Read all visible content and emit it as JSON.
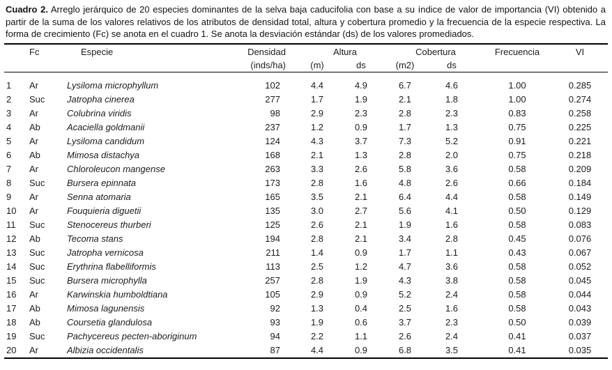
{
  "caption": {
    "label": "Cuadro 2.",
    "text": " Arreglo jerárquico de 20 especies dominantes de la selva baja caducifolia con base a su índice de valor de importancia (VI) obtenido a partir de la suma de los valores relativos de los atributos de densidad total, altura y cobertura promedio y la frecuencia de la especie respectiva. La forma de crecimiento (Fc) se anota en el cuadro 1. Se anota la desviación estándar (ds) de los valores promediados."
  },
  "table": {
    "headers": {
      "fc": "Fc",
      "species": "Especie",
      "density_line1": "Densidad",
      "density_line2": "(inds/ha)",
      "height": "Altura",
      "height_unit": "(m)",
      "height_ds": "ds",
      "cover": "Cobertura",
      "cover_unit": "(m2)",
      "cover_ds": "ds",
      "frequency": "Frecuencia",
      "vi": "VI"
    },
    "rows": [
      {
        "rank": "1",
        "fc": "Ar",
        "species": "Lysiloma microphyllum",
        "density": "102",
        "height_m": "4.4",
        "height_ds": "4.9",
        "cover_m2": "6.7",
        "cover_ds": "4.6",
        "frequency": "1.00",
        "vi": "0.285"
      },
      {
        "rank": "2",
        "fc": "Suc",
        "species": "Jatropha cinerea",
        "density": "277",
        "height_m": "1.7",
        "height_ds": "1.9",
        "cover_m2": "2.1",
        "cover_ds": "1.8",
        "frequency": "1.00",
        "vi": "0.274"
      },
      {
        "rank": "3",
        "fc": "Ar",
        "species": "Colubrina viridis",
        "density": "98",
        "height_m": "2.9",
        "height_ds": "2.3",
        "cover_m2": "2.8",
        "cover_ds": "2.3",
        "frequency": "0.83",
        "vi": "0.258"
      },
      {
        "rank": "4",
        "fc": "Ab",
        "species": "Acaciella goldmanii",
        "density": "237",
        "height_m": "1.2",
        "height_ds": "0.9",
        "cover_m2": "1.7",
        "cover_ds": "1.3",
        "frequency": "0.75",
        "vi": "0.225"
      },
      {
        "rank": "5",
        "fc": "Ar",
        "species": "Lysiloma candidum",
        "density": "124",
        "height_m": "4.3",
        "height_ds": "3.7",
        "cover_m2": "7.3",
        "cover_ds": "5.2",
        "frequency": "0.91",
        "vi": "0.221"
      },
      {
        "rank": "6",
        "fc": "Ab",
        "species": "Mimosa distachya",
        "density": "168",
        "height_m": "2.1",
        "height_ds": "1.3",
        "cover_m2": "2.8",
        "cover_ds": "2.0",
        "frequency": "0.75",
        "vi": "0.218"
      },
      {
        "rank": "7",
        "fc": "Ar",
        "species": "Chloroleucon mangense",
        "density": "263",
        "height_m": "3.3",
        "height_ds": "2.6",
        "cover_m2": "5.8",
        "cover_ds": "3.6",
        "frequency": "0.58",
        "vi": "0.209"
      },
      {
        "rank": "8",
        "fc": "Suc",
        "species": "Bursera epinnata",
        "density": "173",
        "height_m": "2.8",
        "height_ds": "1.6",
        "cover_m2": "4.8",
        "cover_ds": "2.6",
        "frequency": "0.66",
        "vi": "0.184"
      },
      {
        "rank": "9",
        "fc": "Ar",
        "species": "Senna atomaria",
        "density": "165",
        "height_m": "3.5",
        "height_ds": "2.1",
        "cover_m2": "6.4",
        "cover_ds": "4.4",
        "frequency": "0.58",
        "vi": "0.149"
      },
      {
        "rank": "10",
        "fc": "Ar",
        "species": "Fouquieria diguetii",
        "density": "135",
        "height_m": "3.0",
        "height_ds": "2.7",
        "cover_m2": "5.6",
        "cover_ds": "4.1",
        "frequency": "0.50",
        "vi": "0.129"
      },
      {
        "rank": "11",
        "fc": "Suc",
        "species": "Stenocereus thurberi",
        "density": "125",
        "height_m": "2.6",
        "height_ds": "2.1",
        "cover_m2": "1.9",
        "cover_ds": "1.6",
        "frequency": "0.58",
        "vi": "0.083"
      },
      {
        "rank": "12",
        "fc": "Ab",
        "species": "Tecoma stans",
        "density": "194",
        "height_m": "2.8",
        "height_ds": "2.1",
        "cover_m2": "3.4",
        "cover_ds": "2.8",
        "frequency": "0.45",
        "vi": "0.076"
      },
      {
        "rank": "13",
        "fc": "Suc",
        "species": "Jatropha vernicosa",
        "density": "211",
        "height_m": "1.4",
        "height_ds": "0.9",
        "cover_m2": "1.7",
        "cover_ds": "1.1",
        "frequency": "0.43",
        "vi": "0.067"
      },
      {
        "rank": "14",
        "fc": "Suc",
        "species": "Erythrina flabelliformis",
        "density": "113",
        "height_m": "2.5",
        "height_ds": "1.2",
        "cover_m2": "4.7",
        "cover_ds": "3.6",
        "frequency": "0.58",
        "vi": "0.052"
      },
      {
        "rank": "15",
        "fc": "Suc",
        "species": "Bursera microphylla",
        "density": "257",
        "height_m": "2.8",
        "height_ds": "1.9",
        "cover_m2": "4.3",
        "cover_ds": "3.8",
        "frequency": "0.58",
        "vi": "0.045"
      },
      {
        "rank": "16",
        "fc": "Ar",
        "species": "Karwinskia humboldtiana",
        "density": "105",
        "height_m": "2.9",
        "height_ds": "0.9",
        "cover_m2": "5.2",
        "cover_ds": "2.4",
        "frequency": "0.58",
        "vi": "0.044"
      },
      {
        "rank": "17",
        "fc": "Ab",
        "species": "Mimosa lagunensis",
        "density": "92",
        "height_m": "1.3",
        "height_ds": "0.4",
        "cover_m2": "2.5",
        "cover_ds": "1.6",
        "frequency": "0.58",
        "vi": "0.043"
      },
      {
        "rank": "18",
        "fc": "Ab",
        "species": "Coursetia glandulosa",
        "density": "93",
        "height_m": "1.9",
        "height_ds": "0.6",
        "cover_m2": "3.7",
        "cover_ds": "2.3",
        "frequency": "0.50",
        "vi": "0.039"
      },
      {
        "rank": "19",
        "fc": "Suc",
        "species": "Pachycereus pecten-aboriginum",
        "density": "94",
        "height_m": "2.2",
        "height_ds": "1.1",
        "cover_m2": "2.6",
        "cover_ds": "2.4",
        "frequency": "0.41",
        "vi": "0.037"
      },
      {
        "rank": "20",
        "fc": "Ar",
        "species": "Albizia occidentalis",
        "density": "87",
        "height_m": "4.4",
        "height_ds": "0.9",
        "cover_m2": "6.8",
        "cover_ds": "3.5",
        "frequency": "0.41",
        "vi": "0.035"
      }
    ]
  }
}
